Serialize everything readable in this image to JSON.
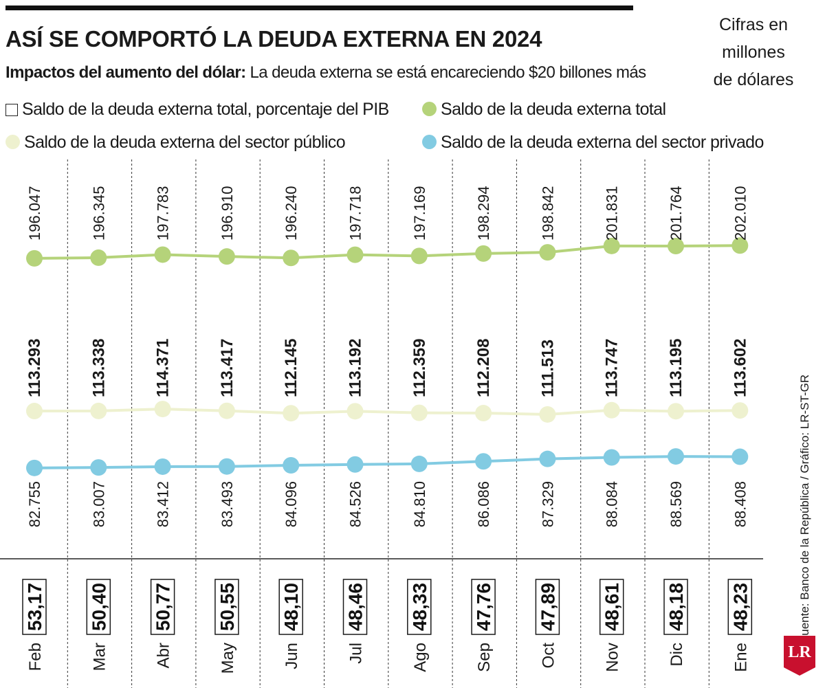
{
  "header": {
    "title": "ASÍ SE COMPORTÓ LA DEUDA EXTERNA EN 2024",
    "subtitle_bold": "Impactos del aumento del dólar:",
    "subtitle_rest": " La deuda externa se está encareciendo $20 billones más",
    "units": [
      "Cifras en",
      "millones",
      "de dólares"
    ]
  },
  "legend": [
    {
      "label": "Saldo de la deuda externa total, porcentaje del PIB",
      "marker": "square",
      "color": "#ffffff"
    },
    {
      "label": "Saldo de la deuda externa total",
      "marker": "dot",
      "color": "#b5d37a"
    },
    {
      "label": "Saldo de la deuda externa del sector público",
      "marker": "dot",
      "color": "#eef1cf"
    },
    {
      "label": "Saldo de la deuda externa del sector privado",
      "marker": "dot",
      "color": "#82cbe2"
    }
  ],
  "chart_data": {
    "type": "line",
    "categories": [
      "Feb",
      "Mar",
      "Abr",
      "May",
      "Jun",
      "Jul",
      "Ago",
      "Sep",
      "Oct",
      "Nov",
      "Dic",
      "Ene"
    ],
    "series": [
      {
        "name": "Saldo de la deuda externa total",
        "color": "#b5d37a",
        "values": [
          196047,
          196345,
          197783,
          196910,
          196240,
          197718,
          197169,
          198294,
          198842,
          201831,
          201764,
          202010
        ],
        "labels": [
          "196.047",
          "196.345",
          "197.783",
          "196.910",
          "196.240",
          "197.718",
          "197.169",
          "198.294",
          "198.842",
          "201.831",
          "201.764",
          "202.010"
        ]
      },
      {
        "name": "Saldo de la deuda externa del sector público",
        "color": "#eef1cf",
        "values": [
          113293,
          113338,
          114371,
          113417,
          112145,
          113192,
          112359,
          112208,
          111513,
          113747,
          113195,
          113602
        ],
        "labels": [
          "113.293",
          "113.338",
          "114.371",
          "113.417",
          "112.145",
          "113.192",
          "112.359",
          "112.208",
          "111.513",
          "113.747",
          "113.195",
          "113.602"
        ]
      },
      {
        "name": "Saldo de la deuda externa del sector privado",
        "color": "#82cbe2",
        "values": [
          82755,
          83007,
          83412,
          83493,
          84096,
          84526,
          84810,
          86086,
          87329,
          88084,
          88569,
          88408
        ],
        "labels": [
          "82.755",
          "83.007",
          "83.412",
          "83.493",
          "84.096",
          "84.526",
          "84.810",
          "86.086",
          "87.329",
          "88.084",
          "88.569",
          "88.408"
        ]
      },
      {
        "name": "Saldo de la deuda externa total, porcentaje del PIB",
        "values": [
          53.17,
          50.4,
          50.77,
          50.55,
          48.1,
          48.46,
          48.33,
          47.76,
          47.89,
          48.61,
          48.18,
          48.23
        ],
        "labels": [
          "53,17",
          "50,40",
          "50,77",
          "50,55",
          "48,10",
          "48,46",
          "48,33",
          "47,76",
          "47,89",
          "48,61",
          "48,18",
          "48,23"
        ]
      }
    ]
  },
  "footer": {
    "source": "Fuente: Banco de la República / Gráfico: LR-ST-GR",
    "logo": "LR"
  }
}
